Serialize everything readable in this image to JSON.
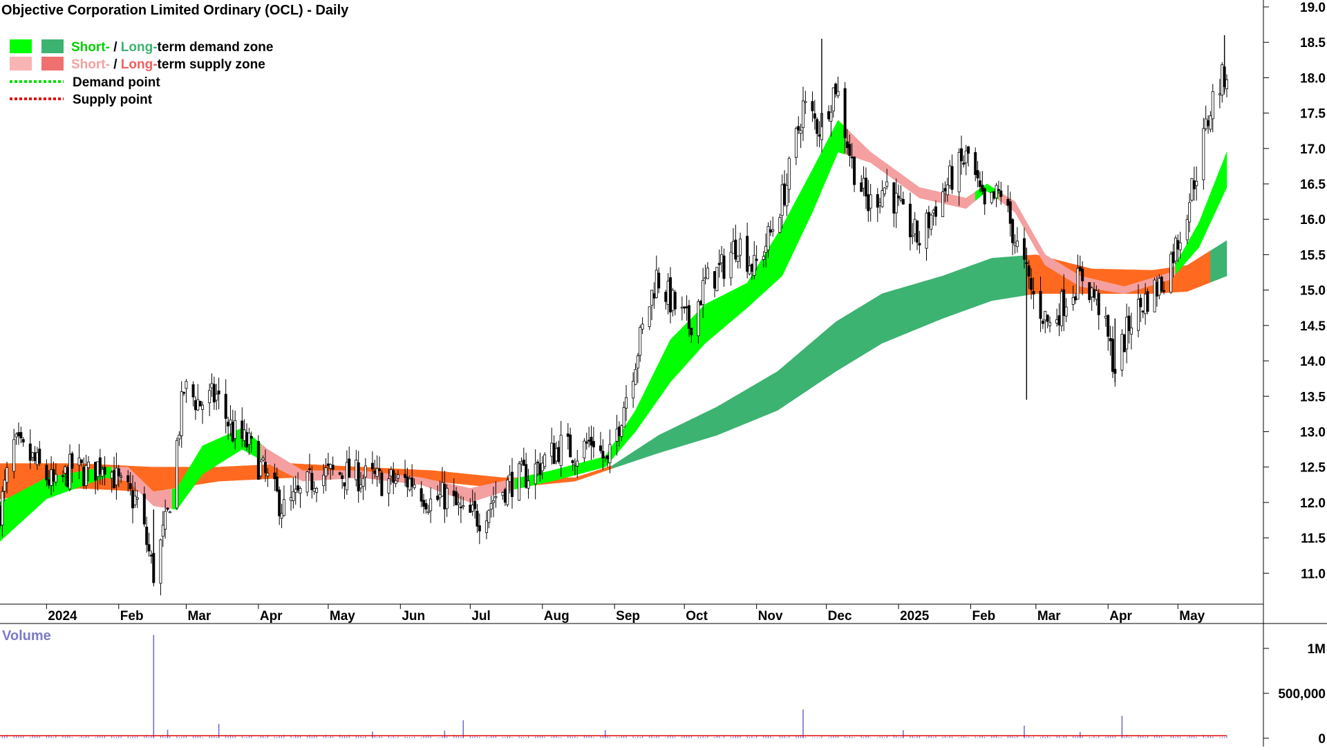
{
  "chart_data": {
    "type": "candlestick",
    "title": "Objective Corporation Limited Ordinary (OCL) - Daily",
    "legend": {
      "placement": "top-left",
      "demand_zone": {
        "short": "Short-",
        "sep": " / ",
        "long": "Long-",
        "rest": "term demand zone"
      },
      "supply_zone": {
        "short": "Short-",
        "sep": " / ",
        "long": "Long-",
        "rest": "term supply zone"
      },
      "demand_point": "Demand point",
      "supply_point": "Supply point"
    },
    "colors": {
      "short_demand": "#00ff00",
      "long_demand": "#3cb371",
      "short_supply": "#f4a0a0",
      "long_supply": "#ff6a20",
      "demand_point": "#00e000",
      "supply_point": "#e00000",
      "volume_bar": "#7070d0",
      "volume_avg": "#e00000"
    },
    "y_axis": {
      "min": 10.7,
      "max": 19.0,
      "ticks": [
        "11.0",
        "11.5",
        "12.0",
        "12.5",
        "13.0",
        "13.5",
        "14.0",
        "14.5",
        "15.0",
        "15.5",
        "16.0",
        "16.5",
        "17.0",
        "17.5",
        "18.0",
        "18.5",
        "19.0"
      ]
    },
    "x_axis": {
      "start": "2023-12-12",
      "end": "2025-05-22",
      "labels": [
        {
          "date": "2024-01-01",
          "text": "2024"
        },
        {
          "date": "2024-02-01",
          "text": "Feb"
        },
        {
          "date": "2024-03-01",
          "text": "Mar"
        },
        {
          "date": "2024-04-01",
          "text": "Apr"
        },
        {
          "date": "2024-05-01",
          "text": "May"
        },
        {
          "date": "2024-06-01",
          "text": "Jun"
        },
        {
          "date": "2024-07-01",
          "text": "Jul"
        },
        {
          "date": "2024-08-01",
          "text": "Aug"
        },
        {
          "date": "2024-09-01",
          "text": "Sep"
        },
        {
          "date": "2024-10-01",
          "text": "Oct"
        },
        {
          "date": "2024-11-01",
          "text": "Nov"
        },
        {
          "date": "2024-12-01",
          "text": "Dec"
        },
        {
          "date": "2025-01-01",
          "text": "2025"
        },
        {
          "date": "2025-02-01",
          "text": "Feb"
        },
        {
          "date": "2025-03-01",
          "text": "Mar"
        },
        {
          "date": "2025-04-01",
          "text": "Apr"
        },
        {
          "date": "2025-05-01",
          "text": "May"
        }
      ]
    },
    "price_path": [
      {
        "date": "2023-12-12",
        "close": 11.9
      },
      {
        "date": "2023-12-18",
        "close": 12.8
      },
      {
        "date": "2023-12-26",
        "close": 12.6
      },
      {
        "date": "2024-01-05",
        "close": 12.2
      },
      {
        "date": "2024-01-12",
        "close": 12.5
      },
      {
        "date": "2024-01-19",
        "close": 12.4
      },
      {
        "date": "2024-01-26",
        "close": 12.6
      },
      {
        "date": "2024-02-02",
        "close": 12.2
      },
      {
        "date": "2024-02-09",
        "close": 12.0
      },
      {
        "date": "2024-02-16",
        "close": 11.0
      },
      {
        "date": "2024-02-22",
        "close": 11.8
      },
      {
        "date": "2024-02-29",
        "close": 13.6
      },
      {
        "date": "2024-03-07",
        "close": 13.4
      },
      {
        "date": "2024-03-14",
        "close": 13.5
      },
      {
        "date": "2024-03-21",
        "close": 13.0
      },
      {
        "date": "2024-03-28",
        "close": 12.8
      },
      {
        "date": "2024-04-05",
        "close": 12.3
      },
      {
        "date": "2024-04-12",
        "close": 11.9
      },
      {
        "date": "2024-04-19",
        "close": 12.1
      },
      {
        "date": "2024-04-26",
        "close": 12.4
      },
      {
        "date": "2024-05-10",
        "close": 12.4
      },
      {
        "date": "2024-05-24",
        "close": 12.3
      },
      {
        "date": "2024-06-07",
        "close": 12.3
      },
      {
        "date": "2024-06-14",
        "close": 12.0
      },
      {
        "date": "2024-06-21",
        "close": 12.1
      },
      {
        "date": "2024-06-28",
        "close": 11.8
      },
      {
        "date": "2024-07-05",
        "close": 11.8
      },
      {
        "date": "2024-07-12",
        "close": 12.1
      },
      {
        "date": "2024-07-19",
        "close": 12.3
      },
      {
        "date": "2024-07-26",
        "close": 12.4
      },
      {
        "date": "2024-08-02",
        "close": 12.6
      },
      {
        "date": "2024-08-09",
        "close": 12.8
      },
      {
        "date": "2024-08-16",
        "close": 12.7
      },
      {
        "date": "2024-08-23",
        "close": 12.9
      },
      {
        "date": "2024-08-29",
        "close": 12.5
      },
      {
        "date": "2024-09-05",
        "close": 13.4
      },
      {
        "date": "2024-09-12",
        "close": 14.3
      },
      {
        "date": "2024-09-19",
        "close": 15.2
      },
      {
        "date": "2024-09-26",
        "close": 14.8
      },
      {
        "date": "2024-10-03",
        "close": 14.5
      },
      {
        "date": "2024-10-10",
        "close": 15.1
      },
      {
        "date": "2024-10-17",
        "close": 15.3
      },
      {
        "date": "2024-10-24",
        "close": 15.7
      },
      {
        "date": "2024-10-31",
        "close": 15.3
      },
      {
        "date": "2024-11-07",
        "close": 15.8
      },
      {
        "date": "2024-11-14",
        "close": 16.5
      },
      {
        "date": "2024-11-21",
        "close": 17.6
      },
      {
        "date": "2024-11-28",
        "close": 17.3
      },
      {
        "date": "2024-12-05",
        "close": 17.9
      },
      {
        "date": "2024-12-12",
        "close": 16.8
      },
      {
        "date": "2024-12-19",
        "close": 16.2
      },
      {
        "date": "2024-12-27",
        "close": 16.5
      },
      {
        "date": "2025-01-03",
        "close": 16.0
      },
      {
        "date": "2025-01-10",
        "close": 15.7
      },
      {
        "date": "2025-01-17",
        "close": 16.2
      },
      {
        "date": "2025-01-24",
        "close": 16.6
      },
      {
        "date": "2025-01-31",
        "close": 16.9
      },
      {
        "date": "2025-02-07",
        "close": 16.1
      },
      {
        "date": "2025-02-14",
        "close": 16.4
      },
      {
        "date": "2025-02-21",
        "close": 15.6
      },
      {
        "date": "2025-02-28",
        "close": 14.9
      },
      {
        "date": "2025-03-07",
        "close": 14.5
      },
      {
        "date": "2025-03-14",
        "close": 14.9
      },
      {
        "date": "2025-03-21",
        "close": 15.2
      },
      {
        "date": "2025-03-28",
        "close": 14.8
      },
      {
        "date": "2025-04-04",
        "close": 13.9
      },
      {
        "date": "2025-04-11",
        "close": 14.6
      },
      {
        "date": "2025-04-18",
        "close": 14.9
      },
      {
        "date": "2025-04-24",
        "close": 15.1
      },
      {
        "date": "2025-05-02",
        "close": 15.8
      },
      {
        "date": "2025-05-09",
        "close": 16.7
      },
      {
        "date": "2025-05-16",
        "close": 17.7
      },
      {
        "date": "2025-05-22",
        "close": 18.1
      }
    ],
    "bands": {
      "short": [
        {
          "date": "2023-12-12",
          "top": 12.0,
          "bottom": 11.45
        },
        {
          "date": "2024-01-01",
          "top": 12.35,
          "bottom": 12.05
        },
        {
          "date": "2024-01-26",
          "top": 12.5,
          "bottom": 12.35
        },
        {
          "date": "2024-02-05",
          "top": 12.5,
          "bottom": 12.3
        },
        {
          "date": "2024-02-16",
          "top": 12.15,
          "bottom": 11.95
        },
        {
          "date": "2024-02-26",
          "top": 12.2,
          "bottom": 11.9
        },
        {
          "date": "2024-03-08",
          "top": 12.8,
          "bottom": 12.4
        },
        {
          "date": "2024-03-25",
          "top": 13.05,
          "bottom": 12.75
        },
        {
          "date": "2024-04-05",
          "top": 12.75,
          "bottom": 12.55
        },
        {
          "date": "2024-04-20",
          "top": 12.45,
          "bottom": 12.3
        },
        {
          "date": "2024-05-15",
          "top": 12.45,
          "bottom": 12.35
        },
        {
          "date": "2024-06-10",
          "top": 12.35,
          "bottom": 12.25
        },
        {
          "date": "2024-07-01",
          "top": 12.2,
          "bottom": 12.0
        },
        {
          "date": "2024-07-15",
          "top": 12.3,
          "bottom": 12.15
        },
        {
          "date": "2024-08-05",
          "top": 12.45,
          "bottom": 12.3
        },
        {
          "date": "2024-08-28",
          "top": 12.65,
          "bottom": 12.5
        },
        {
          "date": "2024-09-10",
          "top": 13.3,
          "bottom": 13.0
        },
        {
          "date": "2024-09-25",
          "top": 14.3,
          "bottom": 13.7
        },
        {
          "date": "2024-10-10",
          "top": 14.8,
          "bottom": 14.25
        },
        {
          "date": "2024-10-28",
          "top": 15.1,
          "bottom": 14.75
        },
        {
          "date": "2024-11-12",
          "top": 15.9,
          "bottom": 15.2
        },
        {
          "date": "2024-11-25",
          "top": 16.7,
          "bottom": 16.1
        },
        {
          "date": "2024-12-06",
          "top": 17.4,
          "bottom": 16.95
        },
        {
          "date": "2024-12-20",
          "top": 16.95,
          "bottom": 16.8
        },
        {
          "date": "2025-01-10",
          "top": 16.45,
          "bottom": 16.3
        },
        {
          "date": "2025-01-30",
          "top": 16.3,
          "bottom": 16.15
        },
        {
          "date": "2025-02-08",
          "top": 16.5,
          "bottom": 16.4
        },
        {
          "date": "2025-02-20",
          "top": 16.25,
          "bottom": 16.1
        },
        {
          "date": "2025-03-05",
          "top": 15.5,
          "bottom": 15.35
        },
        {
          "date": "2025-03-20",
          "top": 15.2,
          "bottom": 15.05
        },
        {
          "date": "2025-04-08",
          "top": 15.05,
          "bottom": 14.95
        },
        {
          "date": "2025-04-28",
          "top": 15.25,
          "bottom": 15.15
        },
        {
          "date": "2025-05-10",
          "top": 15.95,
          "bottom": 15.6
        },
        {
          "date": "2025-05-22",
          "top": 16.95,
          "bottom": 16.45
        }
      ],
      "long": [
        {
          "date": "2023-12-12",
          "top": 12.55,
          "bottom": 12.05
        },
        {
          "date": "2024-01-15",
          "top": 12.55,
          "bottom": 12.2
        },
        {
          "date": "2024-02-15",
          "top": 12.5,
          "bottom": 12.15
        },
        {
          "date": "2024-03-15",
          "top": 12.5,
          "bottom": 12.3
        },
        {
          "date": "2024-04-15",
          "top": 12.55,
          "bottom": 12.35
        },
        {
          "date": "2024-05-15",
          "top": 12.5,
          "bottom": 12.35
        },
        {
          "date": "2024-06-15",
          "top": 12.45,
          "bottom": 12.3
        },
        {
          "date": "2024-07-15",
          "top": 12.35,
          "bottom": 12.2
        },
        {
          "date": "2024-08-15",
          "top": 12.35,
          "bottom": 12.3
        },
        {
          "date": "2024-08-31",
          "top": 12.52,
          "bottom": 12.48
        },
        {
          "date": "2024-09-20",
          "top": 12.95,
          "bottom": 12.7
        },
        {
          "date": "2024-10-15",
          "top": 13.35,
          "bottom": 12.95
        },
        {
          "date": "2024-11-10",
          "top": 13.85,
          "bottom": 13.3
        },
        {
          "date": "2024-12-05",
          "top": 14.55,
          "bottom": 13.85
        },
        {
          "date": "2024-12-25",
          "top": 14.95,
          "bottom": 14.25
        },
        {
          "date": "2025-01-20",
          "top": 15.2,
          "bottom": 14.6
        },
        {
          "date": "2025-02-10",
          "top": 15.45,
          "bottom": 14.85
        },
        {
          "date": "2025-03-01",
          "top": 15.5,
          "bottom": 14.95
        },
        {
          "date": "2025-03-25",
          "top": 15.3,
          "bottom": 14.95
        },
        {
          "date": "2025-04-20",
          "top": 15.28,
          "bottom": 14.95
        },
        {
          "date": "2025-05-05",
          "top": 15.35,
          "bottom": 14.98
        },
        {
          "date": "2025-05-22",
          "top": 15.7,
          "bottom": 15.2
        }
      ],
      "short_demand_periods": [
        [
          "2023-12-12",
          "2024-01-28"
        ],
        [
          "2024-02-24",
          "2024-04-01"
        ],
        [
          "2024-07-20",
          "2024-12-08"
        ],
        [
          "2025-02-03",
          "2025-02-12"
        ],
        [
          "2025-04-30",
          "2025-05-22"
        ]
      ],
      "long_demand_periods": [
        [
          "2024-08-31",
          "2025-02-24"
        ],
        [
          "2025-05-15",
          "2025-05-22"
        ]
      ]
    },
    "volume": {
      "label": "Volume",
      "ticks": [
        {
          "value": 0,
          "text": "0"
        },
        {
          "value": 500000,
          "text": "500,000"
        },
        {
          "value": 1000000,
          "text": "1M"
        }
      ],
      "max": 1200000,
      "spikes": [
        {
          "date": "2024-02-16",
          "value": 1150000
        },
        {
          "date": "2024-02-22",
          "value": 95000
        },
        {
          "date": "2024-03-15",
          "value": 160000
        },
        {
          "date": "2024-05-20",
          "value": 75000
        },
        {
          "date": "2024-06-20",
          "value": 85000
        },
        {
          "date": "2024-06-28",
          "value": 200000
        },
        {
          "date": "2024-08-28",
          "value": 90000
        },
        {
          "date": "2024-11-21",
          "value": 320000
        },
        {
          "date": "2025-01-03",
          "value": 90000
        },
        {
          "date": "2025-02-24",
          "value": 140000
        },
        {
          "date": "2025-03-20",
          "value": 70000
        },
        {
          "date": "2025-04-07",
          "value": 250000
        }
      ],
      "average": 28000
    }
  }
}
